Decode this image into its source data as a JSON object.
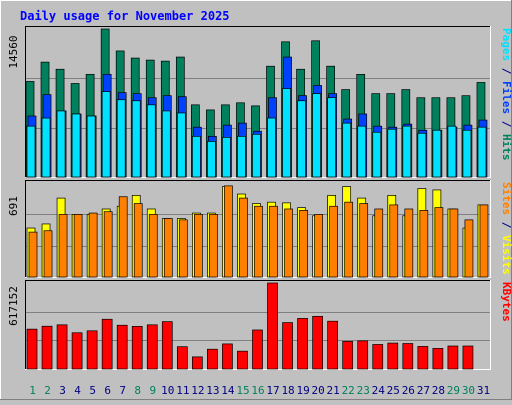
{
  "chart_data": {
    "type": "bar",
    "title": "Daily usage for November 2025",
    "colors": {
      "hits": "#00805c",
      "files": "#0040ff",
      "pages": "#00e0ff",
      "visits": "#ffff00",
      "sites": "#ff8000",
      "kbytes": "#ff0000",
      "title": "#0000ff",
      "weekday_label": "#000080",
      "weekend_label": "#00805c"
    },
    "days": [
      "1",
      "2",
      "3",
      "4",
      "5",
      "6",
      "7",
      "8",
      "9",
      "10",
      "11",
      "12",
      "13",
      "14",
      "15",
      "16",
      "17",
      "18",
      "19",
      "20",
      "21",
      "22",
      "23",
      "24",
      "25",
      "26",
      "27",
      "28",
      "29",
      "30",
      "31"
    ],
    "weekend_days": [
      1,
      2,
      8,
      9,
      15,
      16,
      22,
      23,
      29,
      30
    ],
    "panels": [
      {
        "id": "hits-files-pages",
        "max_label": "14560",
        "ymax": 14560,
        "legend": [
          {
            "text": "Pages",
            "color": "#00e0ff"
          },
          {
            "text": " / ",
            "color": "#000080"
          },
          {
            "text": "Files",
            "color": "#0040ff"
          },
          {
            "text": " / ",
            "color": "#000080"
          },
          {
            "text": "Hits",
            "color": "#00805c"
          }
        ],
        "series": [
          {
            "key": "hits",
            "values": [
              9400,
              11300,
              10600,
              9200,
              10100,
              14560,
              12400,
              11700,
              11500,
              11400,
              11800,
              7100,
              6600,
              7100,
              7300,
              7000,
              10900,
              13300,
              10600,
              13400,
              10900,
              8600,
              10100,
              8200,
              8200,
              8600,
              7800,
              7800,
              7800,
              8000,
              9300
            ]
          },
          {
            "key": "files",
            "values": [
              6000,
              8100,
              6500,
              6200,
              6000,
              10100,
              8300,
              8200,
              7800,
              8000,
              7900,
              4900,
              4000,
              5100,
              5300,
              4500,
              7800,
              11800,
              8000,
              9000,
              8200,
              5700,
              6200,
              5000,
              4900,
              5200,
              4600,
              4600,
              4900,
              5100,
              5600
            ]
          },
          {
            "key": "pages",
            "values": [
              5000,
              5800,
              6500,
              6200,
              6000,
              8400,
              7600,
              7500,
              7100,
              6500,
              6300,
              4000,
              3500,
              3900,
              4000,
              4200,
              5800,
              8700,
              7500,
              8200,
              7800,
              5300,
              5000,
              4400,
              4700,
              5000,
              4300,
              4600,
              5000,
              4600,
              4900
            ]
          }
        ]
      },
      {
        "id": "visits-sites",
        "max_label": "691",
        "ymax": 691,
        "legend": [
          {
            "text": "Sites",
            "color": "#ff8000"
          },
          {
            "text": " / ",
            "color": "#000080"
          },
          {
            "text": "Visits",
            "color": "#ffff00"
          }
        ],
        "series": [
          {
            "key": "visits",
            "values": [
              360,
              390,
              580,
              460,
              460,
              500,
              520,
              600,
              500,
              430,
              430,
              470,
              470,
              665,
              610,
              540,
              550,
              545,
              510,
              450,
              600,
              665,
              580,
              450,
              600,
              450,
              650,
              640,
              500,
              360,
              530
            ]
          },
          {
            "key": "sites",
            "values": [
              330,
              340,
              460,
              460,
              470,
              480,
              590,
              540,
              460,
              430,
              420,
              460,
              460,
              670,
              580,
              520,
              520,
              500,
              490,
              460,
              520,
              550,
              540,
              500,
              530,
              500,
              490,
              510,
              500,
              420,
              530
            ]
          }
        ]
      },
      {
        "id": "kbytes",
        "max_label": "617152",
        "ymax": 617152,
        "legend": [
          {
            "text": "KBytes",
            "color": "#ff0000"
          }
        ],
        "series": [
          {
            "key": "kbytes",
            "values": [
              286000,
              307000,
              317000,
              260000,
              274000,
              357000,
              314000,
              306000,
              317000,
              340000,
              160000,
              87000,
              142000,
              180000,
              128000,
              280000,
              617152,
              333000,
              363000,
              378000,
              343000,
              198000,
              202000,
              176000,
              186000,
              183000,
              162000,
              148000,
              165000,
              165000,
              0
            ]
          }
        ]
      }
    ]
  }
}
